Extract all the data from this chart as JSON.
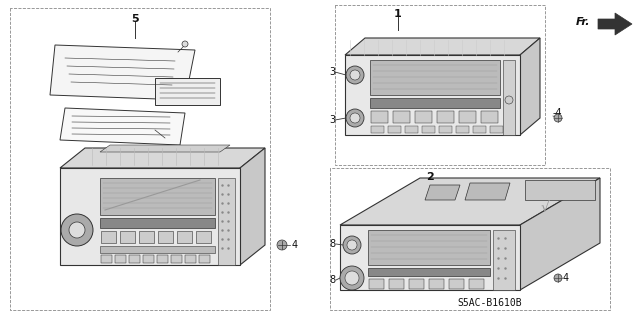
{
  "background_color": "#ffffff",
  "diagram_code": "S5AC-B1610B",
  "fig_width": 6.4,
  "fig_height": 3.19,
  "dpi": 100,
  "line_color": "#333333",
  "dash_color": "#888888",
  "fill_light": "#f0f0f0",
  "fill_med": "#d8d8d8",
  "fill_dark": "#b8b8b8"
}
